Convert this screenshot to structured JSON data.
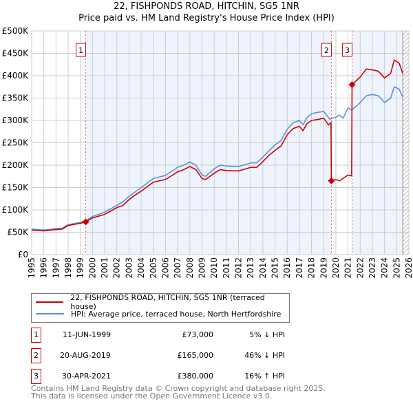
{
  "chart_data": {
    "type": "line",
    "title": "22, FISHPONDS ROAD, HITCHIN, SG5 1NR",
    "subtitle": "Price paid vs. HM Land Registry's House Price Index (HPI)",
    "xlim": [
      1995,
      2026
    ],
    "ylim": [
      0,
      500000
    ],
    "yticks": [
      "£0",
      "£50K",
      "£100K",
      "£150K",
      "£200K",
      "£250K",
      "£300K",
      "£350K",
      "£400K",
      "£450K",
      "£500K"
    ],
    "xticks": [
      "1995",
      "1996",
      "1997",
      "1998",
      "1999",
      "2000",
      "2001",
      "2002",
      "2003",
      "2004",
      "2005",
      "2006",
      "2007",
      "2008",
      "2009",
      "2010",
      "2011",
      "2012",
      "2013",
      "2014",
      "2015",
      "2016",
      "2017",
      "2018",
      "2019",
      "2020",
      "2021",
      "2022",
      "2023",
      "2024",
      "2025",
      "2026"
    ],
    "grid": true,
    "series": [
      {
        "name": "22, FISHPONDS ROAD, HITCHIN, SG5 1NR (terraced house)",
        "color": "#cc0000",
        "points": [
          [
            1995,
            55
          ],
          [
            1996,
            53
          ],
          [
            1997,
            56
          ],
          [
            1997.5,
            57
          ],
          [
            1998,
            65
          ],
          [
            1999,
            70
          ],
          [
            1999.44,
            73
          ],
          [
            2000,
            82
          ],
          [
            2001,
            90
          ],
          [
            2002,
            105
          ],
          [
            2002.5,
            110
          ],
          [
            2003,
            123
          ],
          [
            2003.5,
            133
          ],
          [
            2004,
            142
          ],
          [
            2004.5,
            152
          ],
          [
            2005,
            162
          ],
          [
            2006,
            168
          ],
          [
            2007,
            185
          ],
          [
            2007.5,
            190
          ],
          [
            2008,
            197
          ],
          [
            2008.5,
            190
          ],
          [
            2009,
            170
          ],
          [
            2009.3,
            168
          ],
          [
            2010,
            182
          ],
          [
            2010.5,
            190
          ],
          [
            2011,
            188
          ],
          [
            2012,
            187
          ],
          [
            2013,
            195
          ],
          [
            2013.5,
            195
          ],
          [
            2014,
            208
          ],
          [
            2014.5,
            222
          ],
          [
            2015,
            233
          ],
          [
            2015.5,
            243
          ],
          [
            2016,
            268
          ],
          [
            2016.5,
            282
          ],
          [
            2017,
            287
          ],
          [
            2017.3,
            277
          ],
          [
            2017.6,
            292
          ],
          [
            2018,
            300
          ],
          [
            2018.5,
            302
          ],
          [
            2019,
            305
          ],
          [
            2019.4,
            290
          ],
          [
            2019.6,
            295
          ],
          [
            2019.63,
            165
          ],
          [
            2020,
            168
          ],
          [
            2020.3,
            165
          ],
          [
            2021,
            178
          ],
          [
            2021.3,
            176
          ],
          [
            2021.33,
            380
          ],
          [
            2022,
            397
          ],
          [
            2022.5,
            415
          ],
          [
            2023,
            413
          ],
          [
            2023.5,
            410
          ],
          [
            2024,
            395
          ],
          [
            2024.5,
            405
          ],
          [
            2024.8,
            435
          ],
          [
            2025.2,
            428
          ],
          [
            2025.5,
            405
          ]
        ]
      },
      {
        "name": "HPI: Average price, terraced house, North Hertfordshire",
        "color": "#5b8fd6",
        "points": [
          [
            1995,
            57
          ],
          [
            1996,
            55
          ],
          [
            1997,
            58
          ],
          [
            1997.5,
            59
          ],
          [
            1998,
            67
          ],
          [
            1999,
            72
          ],
          [
            1999.5,
            77
          ],
          [
            2000,
            85
          ],
          [
            2001,
            95
          ],
          [
            2002,
            110
          ],
          [
            2002.5,
            118
          ],
          [
            2003,
            130
          ],
          [
            2003.5,
            140
          ],
          [
            2004,
            150
          ],
          [
            2004.5,
            160
          ],
          [
            2005,
            170
          ],
          [
            2006,
            177
          ],
          [
            2007,
            195
          ],
          [
            2007.5,
            200
          ],
          [
            2008,
            207
          ],
          [
            2008.5,
            200
          ],
          [
            2009,
            178
          ],
          [
            2009.3,
            175
          ],
          [
            2010,
            192
          ],
          [
            2010.5,
            200
          ],
          [
            2011,
            198
          ],
          [
            2012,
            197
          ],
          [
            2013,
            205
          ],
          [
            2013.5,
            205
          ],
          [
            2014,
            218
          ],
          [
            2014.5,
            232
          ],
          [
            2015,
            245
          ],
          [
            2015.5,
            255
          ],
          [
            2016,
            280
          ],
          [
            2016.5,
            295
          ],
          [
            2017,
            300
          ],
          [
            2017.3,
            290
          ],
          [
            2017.6,
            305
          ],
          [
            2018,
            315
          ],
          [
            2018.5,
            318
          ],
          [
            2019,
            320
          ],
          [
            2019.5,
            303
          ],
          [
            2020,
            307
          ],
          [
            2020.3,
            312
          ],
          [
            2020.6,
            305
          ],
          [
            2021,
            328
          ],
          [
            2021.3,
            323
          ],
          [
            2021.7,
            332
          ],
          [
            2022,
            340
          ],
          [
            2022.5,
            355
          ],
          [
            2023,
            358
          ],
          [
            2023.5,
            355
          ],
          [
            2024,
            340
          ],
          [
            2024.5,
            350
          ],
          [
            2024.8,
            375
          ],
          [
            2025.2,
            370
          ],
          [
            2025.5,
            352
          ]
        ]
      }
    ],
    "sales": [
      {
        "label": "1",
        "year": 1999.44,
        "price": 73,
        "date": "11-JUN-1999",
        "price_text": "£73,000",
        "hpi_text": "5% ↓ HPI"
      },
      {
        "label": "2",
        "year": 2019.63,
        "price": 165,
        "date": "20-AUG-2019",
        "price_text": "£165,000",
        "hpi_text": "46% ↓ HPI"
      },
      {
        "label": "3",
        "year": 2021.33,
        "price": 380,
        "date": "30-APR-2021",
        "price_text": "£380,000",
        "hpi_text": "16% ↑ HPI"
      }
    ],
    "shaded_ranges": [
      [
        1999.44,
        2019.63
      ],
      [
        2021.33,
        2025.5
      ]
    ],
    "forecast_from": 2025.5,
    "value_units": "£K"
  },
  "footer": [
    "Contains HM Land Registry data © Crown copyright and database right 2025.",
    "This data is licensed under the Open Government Licence v3.0."
  ]
}
